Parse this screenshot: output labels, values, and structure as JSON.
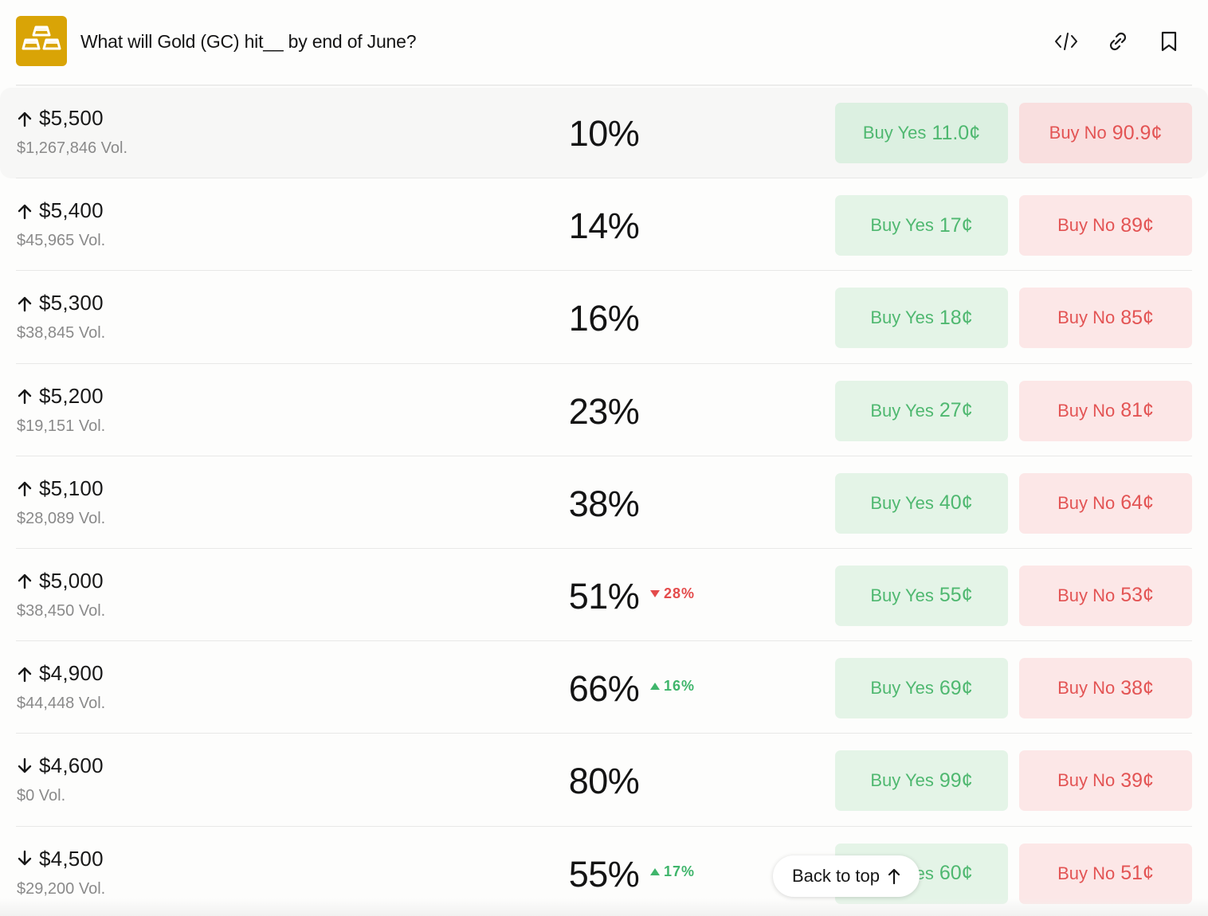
{
  "header": {
    "title": "What will Gold (GC) hit__ by end of June?",
    "logo_icon": "gold-bars-icon",
    "actions": [
      {
        "name": "embed-icon"
      },
      {
        "name": "link-icon"
      },
      {
        "name": "bookmark-icon"
      }
    ]
  },
  "colors": {
    "logo_bg": "#d9a406",
    "yes_bg": "#e4f4e7",
    "yes_text": "#4fb870",
    "no_bg": "#fce7e7",
    "no_text": "#e35454",
    "change_up": "#3fb56b",
    "change_down": "#e44b4b"
  },
  "rows": [
    {
      "direction": "up",
      "strike": "$5,500",
      "volume": "$1,267,846 Vol.",
      "chance": "10%",
      "change": "",
      "change_dir": "",
      "yes_label": "Buy Yes",
      "yes_price": "11.0¢",
      "no_label": "Buy No",
      "no_price": "90.9¢",
      "highlight": true
    },
    {
      "direction": "up",
      "strike": "$5,400",
      "volume": "$45,965 Vol.",
      "chance": "14%",
      "change": "",
      "change_dir": "",
      "yes_label": "Buy Yes",
      "yes_price": "17¢",
      "no_label": "Buy No",
      "no_price": "89¢",
      "highlight": false
    },
    {
      "direction": "up",
      "strike": "$5,300",
      "volume": "$38,845 Vol.",
      "chance": "16%",
      "change": "",
      "change_dir": "",
      "yes_label": "Buy Yes",
      "yes_price": "18¢",
      "no_label": "Buy No",
      "no_price": "85¢",
      "highlight": false
    },
    {
      "direction": "up",
      "strike": "$5,200",
      "volume": "$19,151 Vol.",
      "chance": "23%",
      "change": "",
      "change_dir": "",
      "yes_label": "Buy Yes",
      "yes_price": "27¢",
      "no_label": "Buy No",
      "no_price": "81¢",
      "highlight": false
    },
    {
      "direction": "up",
      "strike": "$5,100",
      "volume": "$28,089 Vol.",
      "chance": "38%",
      "change": "",
      "change_dir": "",
      "yes_label": "Buy Yes",
      "yes_price": "40¢",
      "no_label": "Buy No",
      "no_price": "64¢",
      "highlight": false
    },
    {
      "direction": "up",
      "strike": "$5,000",
      "volume": "$38,450 Vol.",
      "chance": "51%",
      "change": "28%",
      "change_dir": "down",
      "yes_label": "Buy Yes",
      "yes_price": "55¢",
      "no_label": "Buy No",
      "no_price": "53¢",
      "highlight": false
    },
    {
      "direction": "up",
      "strike": "$4,900",
      "volume": "$44,448 Vol.",
      "chance": "66%",
      "change": "16%",
      "change_dir": "up",
      "yes_label": "Buy Yes",
      "yes_price": "69¢",
      "no_label": "Buy No",
      "no_price": "38¢",
      "highlight": false
    },
    {
      "direction": "down",
      "strike": "$4,600",
      "volume": "$0 Vol.",
      "chance": "80%",
      "change": "",
      "change_dir": "",
      "yes_label": "Buy Yes",
      "yes_price": "99¢",
      "no_label": "Buy No",
      "no_price": "39¢",
      "highlight": false
    },
    {
      "direction": "down",
      "strike": "$4,500",
      "volume": "$29,200 Vol.",
      "chance": "55%",
      "change": "17%",
      "change_dir": "up",
      "yes_label": "Buy Yes",
      "yes_price": "60¢",
      "no_label": "Buy No",
      "no_price": "51¢",
      "highlight": false
    }
  ],
  "back_to_top": {
    "label": "Back to top",
    "icon": "arrow-up-icon"
  }
}
